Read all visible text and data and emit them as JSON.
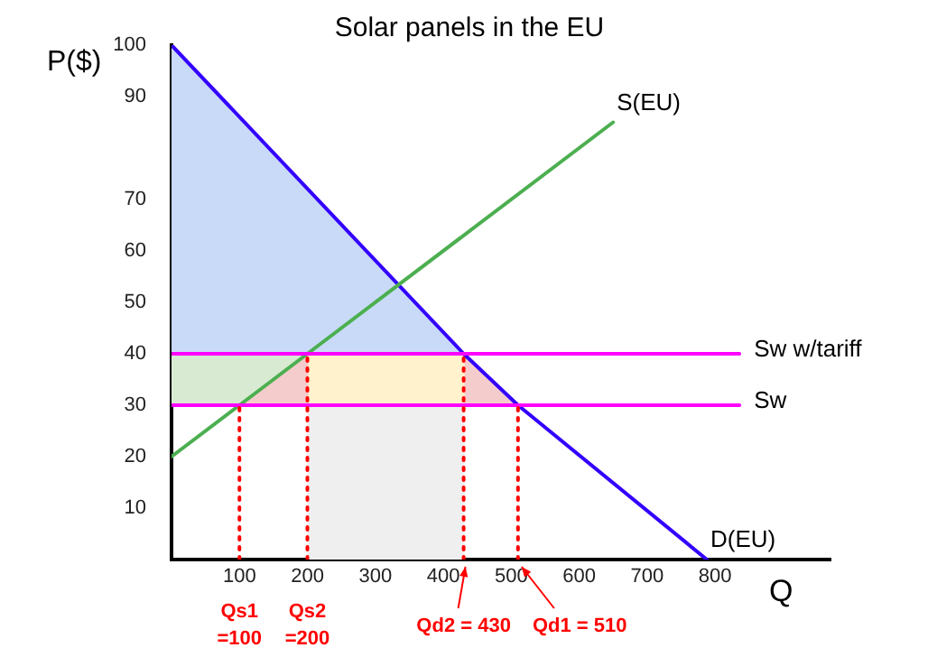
{
  "chart_data": {
    "type": "line",
    "title": "Solar panels in the EU",
    "xlabel": "Q",
    "ylabel": "P($)",
    "xlim": [
      0,
      970
    ],
    "ylim": [
      0,
      100
    ],
    "xticks": [
      100,
      200,
      300,
      400,
      500,
      600,
      700,
      800
    ],
    "yticks": [
      10,
      20,
      30,
      40,
      50,
      60,
      70,
      90,
      100
    ],
    "grid": false,
    "legend": false,
    "marker": "none",
    "series": [
      {
        "type": "area",
        "color": "#c9daf8",
        "x": [
          0,
          430,
          0
        ],
        "values": [
          100,
          40,
          40
        ]
      },
      {
        "type": "area",
        "color": "#d9ead3",
        "x": [
          0,
          100,
          200,
          0
        ],
        "values": [
          30,
          30,
          40,
          40
        ]
      },
      {
        "type": "area",
        "color": "#f4cccc",
        "x": [
          100,
          200,
          200
        ],
        "values": [
          30,
          40,
          30
        ]
      },
      {
        "type": "area",
        "color": "#fff2cc",
        "x": [
          200,
          430,
          430,
          200
        ],
        "values": [
          30,
          30,
          40,
          40
        ]
      },
      {
        "type": "area",
        "color": "#f4cccc",
        "x": [
          430,
          510,
          430
        ],
        "values": [
          40,
          30,
          30
        ]
      },
      {
        "type": "area",
        "color": "#efefef",
        "x": [
          200,
          430,
          430,
          200
        ],
        "values": [
          0,
          0,
          30,
          30
        ]
      },
      {
        "color": "#ff0000",
        "line_style": "dotted",
        "x": [
          100,
          100
        ],
        "values": [
          0,
          30
        ]
      },
      {
        "color": "#ff0000",
        "line_style": "dotted",
        "x": [
          200,
          200
        ],
        "values": [
          0,
          40
        ]
      },
      {
        "color": "#ff0000",
        "line_style": "dotted",
        "x": [
          430,
          430
        ],
        "values": [
          0,
          40
        ]
      },
      {
        "color": "#ff0000",
        "line_style": "dotted",
        "x": [
          510,
          510
        ],
        "values": [
          0,
          30
        ]
      },
      {
        "name": "Sw w/tariff",
        "color": "#ff00ff",
        "x": [
          0,
          836
        ],
        "values": [
          40,
          40
        ]
      },
      {
        "name": "Sw",
        "color": "#ff00ff",
        "x": [
          0,
          836
        ],
        "values": [
          30,
          30
        ]
      },
      {
        "name": "S(EU)",
        "color": "#4caf50",
        "x": [
          0,
          100,
          200,
          650
        ],
        "values": [
          20,
          30,
          40,
          85
        ]
      },
      {
        "name": "D(EU)",
        "color": "#3300ff",
        "x": [
          0,
          430,
          510,
          788
        ],
        "values": [
          100,
          40,
          30,
          0
        ]
      }
    ],
    "annotations": [
      {
        "text": "Qs1\n=100",
        "x": 100,
        "y": 0
      },
      {
        "text": "Qs2\n=200",
        "x": 200,
        "y": 0
      },
      {
        "text": "Qd2 = 430",
        "x": 430,
        "y": 0
      },
      {
        "text": "Qd1 = 510",
        "x": 510,
        "y": 0
      }
    ]
  }
}
